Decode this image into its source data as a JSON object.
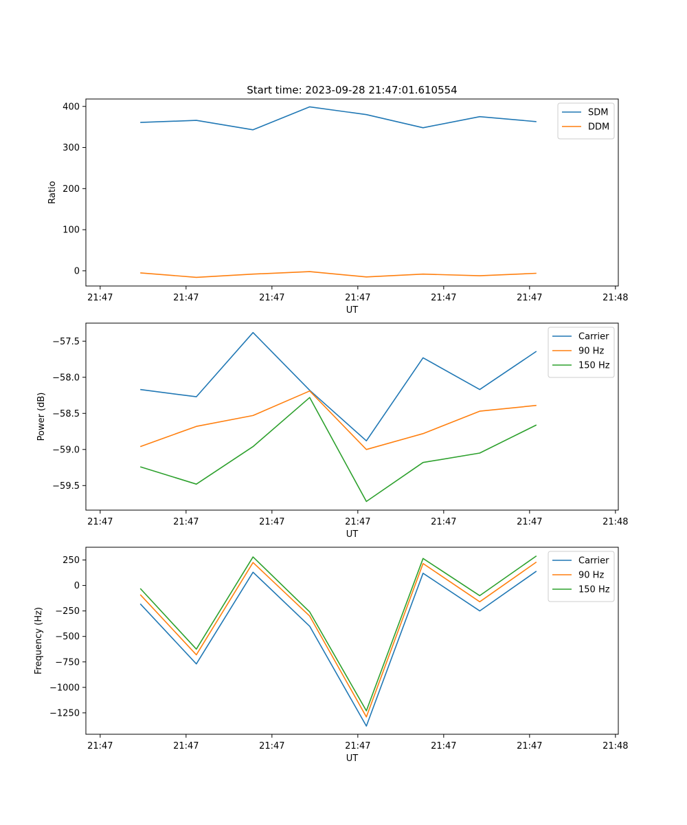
{
  "chart_data": [
    {
      "type": "line",
      "title": "Start time: 2023-09-28 21:47:01.610554",
      "xlabel": "UT",
      "ylabel": "Ratio",
      "xlim": [
        -0.25,
        9.05
      ],
      "x_tick_positions": [
        0,
        1.5,
        3,
        4.5,
        6,
        7.5,
        9
      ],
      "x_tick_labels": [
        "21:47",
        "21:47",
        "21:47",
        "21:47",
        "21:47",
        "21:47",
        "21:48"
      ],
      "ylim": [
        -37,
        418
      ],
      "y_ticks": [
        0,
        100,
        200,
        300,
        400
      ],
      "y_tick_labels": [
        "0",
        "100",
        "200",
        "300",
        "400"
      ],
      "legend_position": "top-right",
      "x": [
        0.7,
        1.68,
        2.67,
        3.66,
        4.65,
        5.64,
        6.63,
        7.62
      ],
      "series": [
        {
          "name": "SDM",
          "color": "#1f77b4",
          "values": [
            361,
            366,
            343,
            399,
            380,
            348,
            375,
            363
          ]
        },
        {
          "name": "DDM",
          "color": "#ff7f0e",
          "values": [
            -5,
            -16,
            -8,
            -2,
            -15,
            -8,
            -12,
            -6
          ]
        }
      ]
    },
    {
      "type": "line",
      "title": "",
      "xlabel": "UT",
      "ylabel": "Power (dB)",
      "xlim": [
        -0.25,
        9.05
      ],
      "x_tick_positions": [
        0,
        1.5,
        3,
        4.5,
        6,
        7.5,
        9
      ],
      "x_tick_labels": [
        "21:47",
        "21:47",
        "21:47",
        "21:47",
        "21:47",
        "21:47",
        "21:48"
      ],
      "ylim": [
        -59.84,
        -57.25
      ],
      "y_ticks": [
        -57.5,
        -58.0,
        -58.5,
        -59.0,
        -59.5
      ],
      "y_tick_labels": [
        "−57.5",
        "−58.0",
        "−58.5",
        "−59.0",
        "−59.5"
      ],
      "legend_position": "top-right",
      "x": [
        0.7,
        1.68,
        2.67,
        3.66,
        4.65,
        5.64,
        6.63,
        7.62
      ],
      "series": [
        {
          "name": "Carrier",
          "color": "#1f77b4",
          "values": [
            -58.17,
            -58.27,
            -57.38,
            -58.18,
            -58.88,
            -57.73,
            -58.17,
            -57.64
          ]
        },
        {
          "name": "90 Hz",
          "color": "#ff7f0e",
          "values": [
            -58.96,
            -58.68,
            -58.53,
            -58.19,
            -59.0,
            -58.78,
            -58.47,
            -58.39
          ]
        },
        {
          "name": "150 Hz",
          "color": "#2ca02c",
          "values": [
            -59.24,
            -59.48,
            -58.96,
            -58.28,
            -59.72,
            -59.18,
            -59.05,
            -58.66
          ]
        }
      ]
    },
    {
      "type": "line",
      "title": "",
      "xlabel": "UT",
      "ylabel": "Frequency (Hz)",
      "xlim": [
        -0.25,
        9.05
      ],
      "x_tick_positions": [
        0,
        1.5,
        3,
        4.5,
        6,
        7.5,
        9
      ],
      "x_tick_labels": [
        "21:47",
        "21:47",
        "21:47",
        "21:47",
        "21:47",
        "21:47",
        "21:48"
      ],
      "ylim": [
        -1460,
        375
      ],
      "y_ticks": [
        250,
        0,
        -250,
        -500,
        -750,
        -1000,
        -1250
      ],
      "y_tick_labels": [
        "250",
        "0",
        "−250",
        "−500",
        "−750",
        "−1000",
        "−1250"
      ],
      "legend_position": "top-right",
      "x": [
        0.7,
        1.68,
        2.67,
        3.66,
        4.65,
        5.64,
        6.63,
        7.62
      ],
      "series": [
        {
          "name": "Carrier",
          "color": "#1f77b4",
          "values": [
            -180,
            -770,
            130,
            -400,
            -1380,
            120,
            -250,
            140
          ]
        },
        {
          "name": "90 Hz",
          "color": "#ff7f0e",
          "values": [
            -90,
            -680,
            225,
            -300,
            -1290,
            215,
            -160,
            230
          ]
        },
        {
          "name": "150 Hz",
          "color": "#2ca02c",
          "values": [
            -30,
            -625,
            280,
            -260,
            -1230,
            265,
            -100,
            290
          ]
        }
      ]
    }
  ]
}
